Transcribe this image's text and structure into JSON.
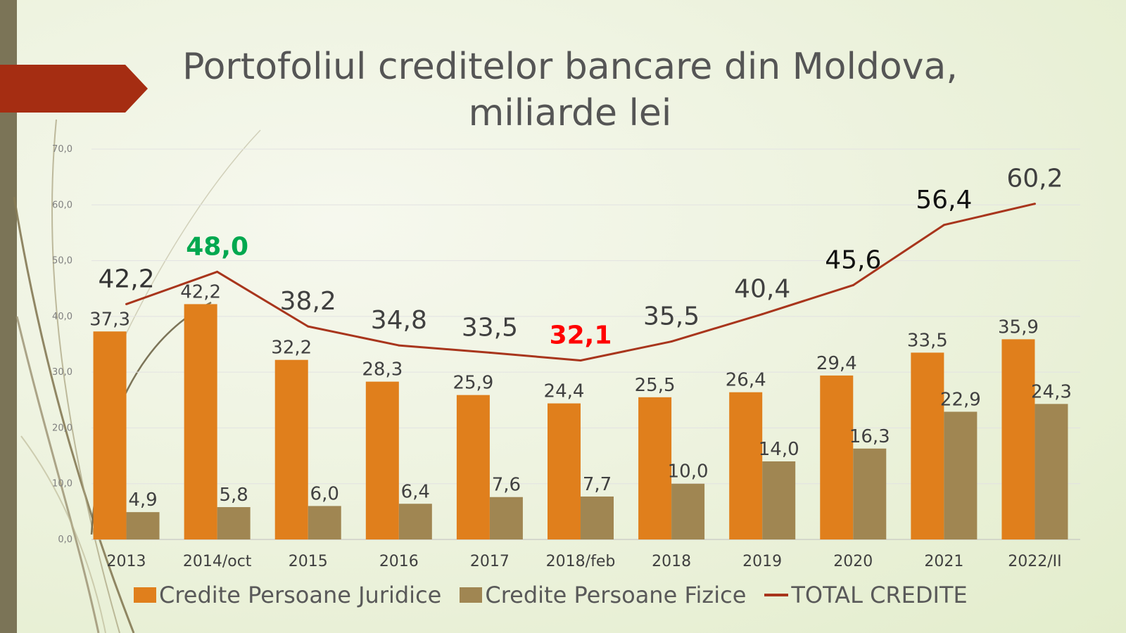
{
  "slide": {
    "title_line1": "Portofoliul creditelor bancare din Moldova,",
    "title_line2": "miliarde lei"
  },
  "chart_data": {
    "type": "bar",
    "categories": [
      "2013",
      "2014/oct",
      "2015",
      "2016",
      "2017",
      "2018/feb",
      "2018",
      "2019",
      "2020",
      "2021",
      "2022/II"
    ],
    "series": [
      {
        "name": "Credite Persoane Juridice",
        "type": "bar",
        "color": "#e07f1c",
        "values": [
          37.3,
          42.2,
          32.2,
          28.3,
          25.9,
          24.4,
          25.5,
          26.4,
          29.4,
          33.5,
          35.9
        ],
        "labels": [
          "37,3",
          "42,2",
          "32,2",
          "28,3",
          "25,9",
          "24,4",
          "25,5",
          "26,4",
          "29,4",
          "33,5",
          "35,9"
        ]
      },
      {
        "name": "Credite Persoane Fizice",
        "type": "bar",
        "color": "#a08652",
        "values": [
          4.9,
          5.8,
          6.0,
          6.4,
          7.6,
          7.7,
          10.0,
          14.0,
          16.3,
          22.9,
          24.3
        ],
        "labels": [
          "4,9",
          "5,8",
          "6,0",
          "6,4",
          "7,6",
          "7,7",
          "10,0",
          "14,0",
          "16,3",
          "22,9",
          "24,3"
        ]
      },
      {
        "name": "TOTAL CREDITE",
        "type": "line",
        "color": "#a8351c",
        "values": [
          42.2,
          48.0,
          38.2,
          34.8,
          33.5,
          32.1,
          35.5,
          40.4,
          45.6,
          56.4,
          60.2
        ],
        "labels": [
          "42,2",
          "48,0",
          "38,2",
          "34,8",
          "33,5",
          "32,1",
          "35,5",
          "40,4",
          "45,6",
          "56,4",
          "60,2"
        ],
        "label_colors": [
          "#333333",
          "#00a84f",
          "#404040",
          "#404040",
          "#404040",
          "#ff0000",
          "#404040",
          "#404040",
          "#111111",
          "#111111",
          "#404040"
        ],
        "label_bold": [
          false,
          true,
          false,
          false,
          false,
          true,
          false,
          false,
          false,
          false,
          false
        ]
      }
    ],
    "yaxis": {
      "ticks": [
        "0,0",
        "10,0",
        "20,0",
        "30,0",
        "40,0",
        "50,0",
        "60,0",
        "70,0"
      ],
      "min": 0,
      "max": 70
    },
    "grid": true,
    "legend_position": "bottom"
  }
}
